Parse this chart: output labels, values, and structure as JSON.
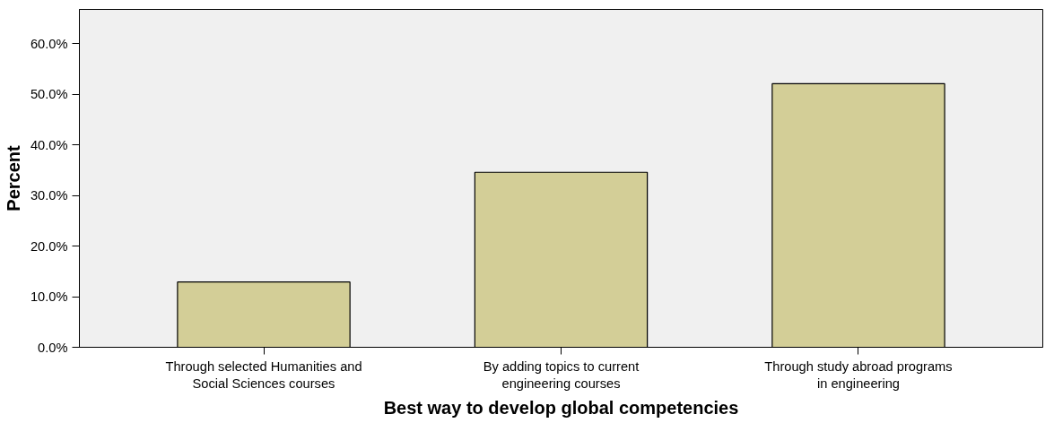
{
  "chart_data": {
    "type": "bar",
    "categories": [
      "Through selected Humanities and\nSocial Sciences courses",
      "By adding topics to current\nengineering courses",
      "Through study abroad programs\nin engineering"
    ],
    "values": [
      12.9,
      34.6,
      52.1
    ],
    "color": "#d3ce97",
    "xlabel": "Best way to develop global competencies",
    "ylabel": "Percent",
    "ylim": [
      0,
      66.8
    ],
    "yticks": [
      {
        "value": 0,
        "label": "0.0%"
      },
      {
        "value": 10,
        "label": "10.0%"
      },
      {
        "value": 20,
        "label": "20.0%"
      },
      {
        "value": 30,
        "label": "30.0%"
      },
      {
        "value": 40,
        "label": "40.0%"
      },
      {
        "value": 50,
        "label": "50.0%"
      },
      {
        "value": 60,
        "label": "60.0%"
      }
    ],
    "grid": false
  }
}
